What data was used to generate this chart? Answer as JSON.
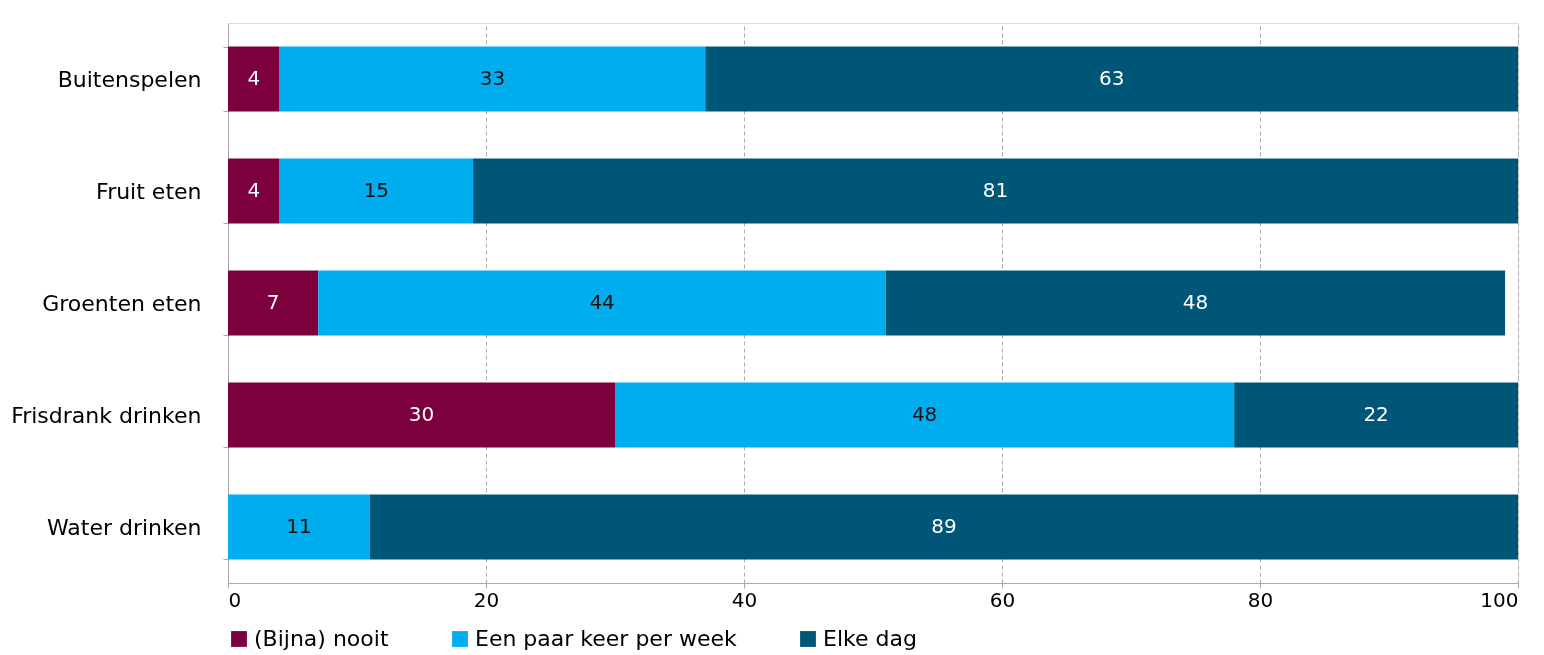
{
  "chart_data": {
    "type": "bar",
    "orientation": "horizontal",
    "stacked": true,
    "categories": [
      "Buitenspelen",
      "Fruit eten",
      "Groenten eten",
      "Frisdrank drinken",
      "Water drinken"
    ],
    "series": [
      {
        "name": "(Bijna) nooit",
        "color": "#7b003c",
        "values": [
          4,
          4,
          7,
          30,
          null
        ]
      },
      {
        "name": "Een paar keer per week",
        "color": "#00adef",
        "values": [
          33,
          15,
          44,
          48,
          11
        ]
      },
      {
        "name": "Elke dag",
        "color": "#005677",
        "values": [
          63,
          81,
          48,
          22,
          89
        ]
      }
    ],
    "xlim": [
      0,
      100
    ],
    "xticks": [
      0,
      20,
      40,
      60,
      80,
      100
    ],
    "grid": "x",
    "legend": "bottom",
    "data_labels": true
  }
}
